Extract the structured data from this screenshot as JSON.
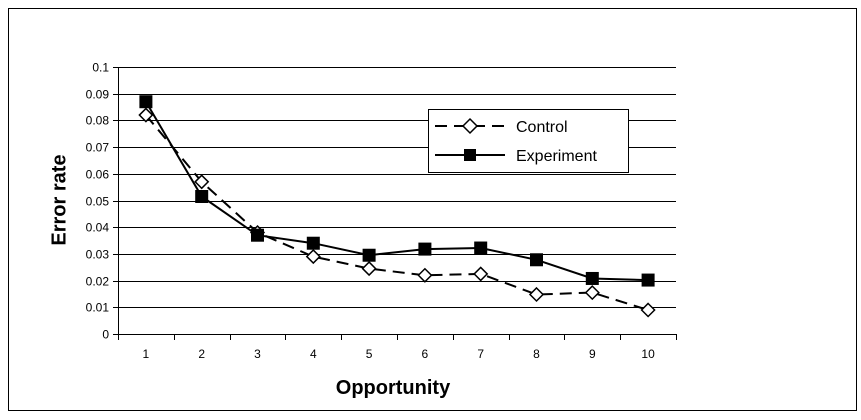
{
  "chart_data": {
    "type": "line",
    "title": "",
    "xlabel": "Opportunity",
    "ylabel": "Error rate",
    "categories": [
      "1",
      "2",
      "3",
      "4",
      "5",
      "6",
      "7",
      "8",
      "9",
      "10"
    ],
    "ylim": [
      0,
      0.1
    ],
    "yticks": [
      "0",
      "0.01",
      "0.02",
      "0.03",
      "0.04",
      "0.05",
      "0.06",
      "0.07",
      "0.08",
      "0.09",
      "0.1"
    ],
    "grid": "horizontal",
    "legend_position": "top-right",
    "series": [
      {
        "name": "Control",
        "style": "dashed",
        "marker": "open-diamond",
        "color": "#000000",
        "values": [
          0.082,
          0.057,
          0.038,
          0.029,
          0.0245,
          0.022,
          0.0225,
          0.0148,
          0.0155,
          0.009
        ]
      },
      {
        "name": "Experiment",
        "style": "solid",
        "marker": "filled-square",
        "color": "#000000",
        "values": [
          0.087,
          0.0515,
          0.037,
          0.034,
          0.0295,
          0.0318,
          0.0322,
          0.0278,
          0.0208,
          0.0202
        ]
      }
    ]
  }
}
